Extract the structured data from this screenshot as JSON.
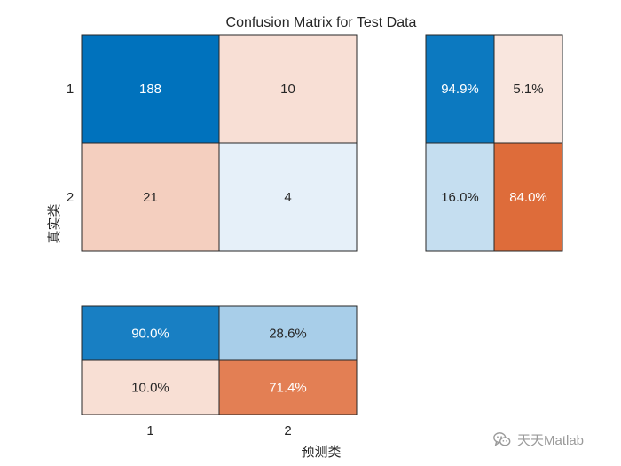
{
  "chart_data": {
    "type": "heatmap",
    "title": "Confusion Matrix for Test Data",
    "xlabel": "预测类",
    "ylabel": "真实类",
    "classes": [
      "1",
      "2"
    ],
    "matrix": [
      [
        188,
        10
      ],
      [
        21,
        4
      ]
    ],
    "row_summary": [
      [
        "94.9%",
        "5.1%"
      ],
      [
        "16.0%",
        "84.0%"
      ]
    ],
    "column_summary": [
      [
        "90.0%",
        "28.6%"
      ],
      [
        "10.0%",
        "71.4%"
      ]
    ],
    "colors": {
      "correct_high": "#0072bd",
      "correct_low": "#ebf3fa",
      "incorrect_high": "#d95319",
      "incorrect_low": "#fbeee9",
      "border": "#262626",
      "text_dark": "#262626",
      "text_light": "#ffffff"
    }
  },
  "watermark": {
    "text": "天天Matlab",
    "icon": "wechat-icon"
  }
}
